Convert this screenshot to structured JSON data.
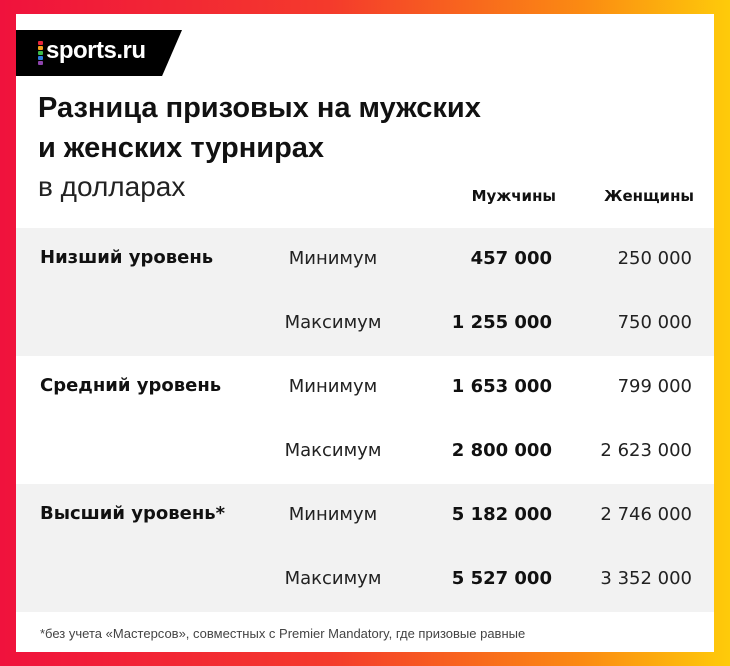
{
  "brand": {
    "logo_text": "sports.ru",
    "dot_colors": [
      "#e7263c",
      "#f6a11d",
      "#3dbb4c",
      "#2b7de1",
      "#8e44ad"
    ]
  },
  "chart_data": {
    "type": "table",
    "title_lines": [
      "Разница призовых на мужских",
      "и женских турнирах"
    ],
    "subtitle": "в долларах",
    "columns": [
      "Мужчины",
      "Женщины"
    ],
    "groups": [
      {
        "label": "Низший уровень",
        "rows": [
          {
            "kind": "Минимум",
            "men": "457 000",
            "women": "250 000"
          },
          {
            "kind": "Максимум",
            "men": "1 255 000",
            "women": "750 000"
          }
        ]
      },
      {
        "label": "Средний уровень",
        "rows": [
          {
            "kind": "Минимум",
            "men": "1 653 000",
            "women": "799 000"
          },
          {
            "kind": "Максимум",
            "men": "2 800 000",
            "women": "2 623 000"
          }
        ]
      },
      {
        "label": "Высший уровень*",
        "rows": [
          {
            "kind": "Минимум",
            "men": "5 182 000",
            "women": "2 746 000"
          },
          {
            "kind": "Максимум",
            "men": "5 527 000",
            "women": "3 352 000"
          }
        ]
      }
    ],
    "footnote": "*без учета «Мастерсов», совместных с Premier Mandatory, где призовые равные"
  },
  "colors": {
    "band": "#f2f2f2",
    "text": "#111111"
  }
}
